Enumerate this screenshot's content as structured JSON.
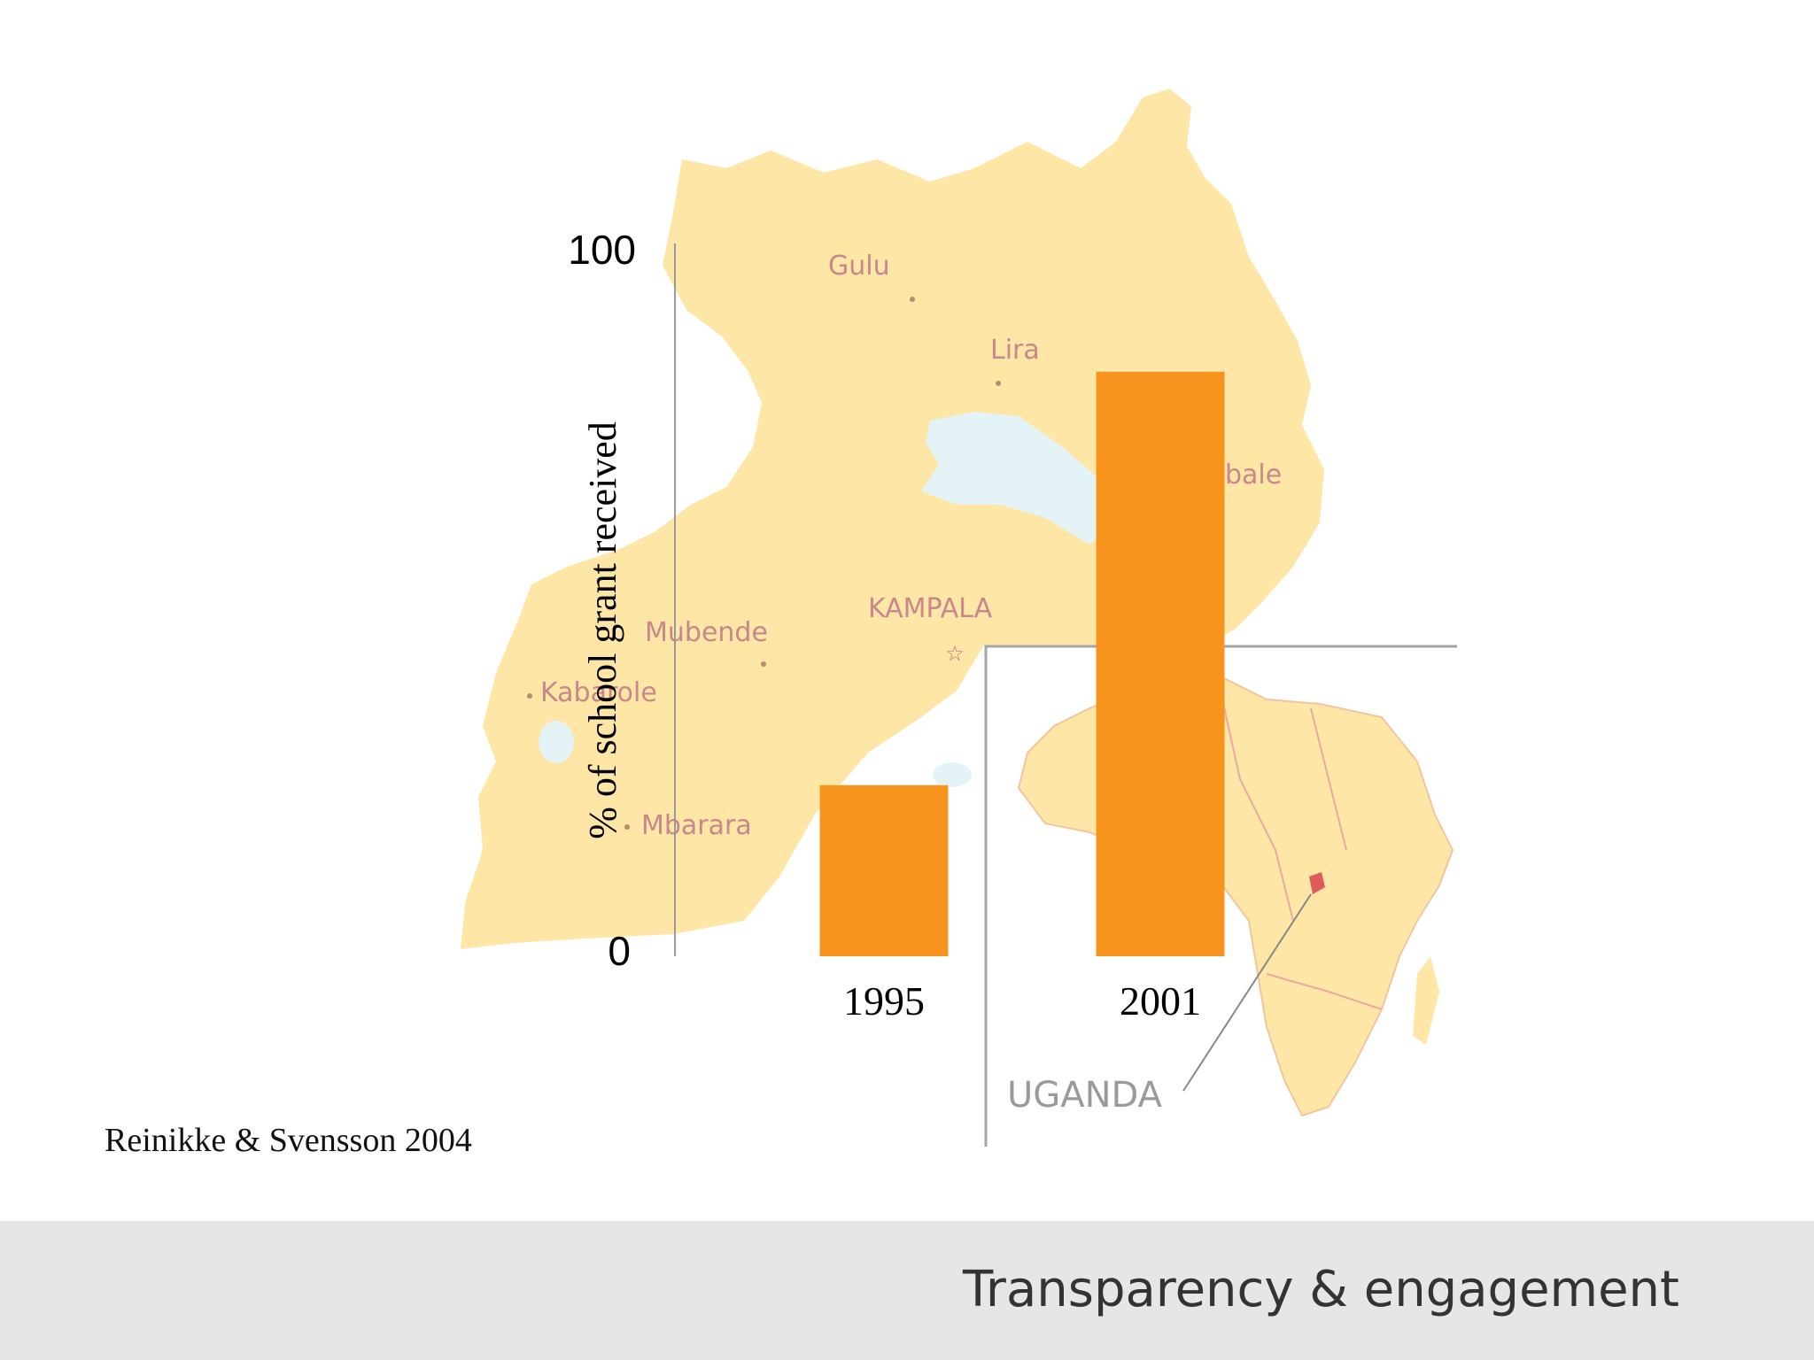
{
  "chart_data": {
    "type": "bar",
    "categories": [
      "1995",
      "2001"
    ],
    "values": [
      24,
      82
    ],
    "ylabel": "% of school grant received",
    "ylim": [
      0,
      100
    ],
    "yticks": [
      "0",
      "100"
    ],
    "bar_color": "#f7941d"
  },
  "map": {
    "labels": [
      "Gulu",
      "Lira",
      "bale",
      "KAMPALA",
      "Mubende",
      "Kabarole",
      "Mbarara"
    ],
    "inset_label": "UGANDA",
    "land_color": "#fde6a6",
    "water_color": "#e4f3f6",
    "border_color": "#e8a9a0"
  },
  "citation": "Reinikke & Svensson 2004",
  "footer": {
    "title": "Transparency & engagement"
  }
}
